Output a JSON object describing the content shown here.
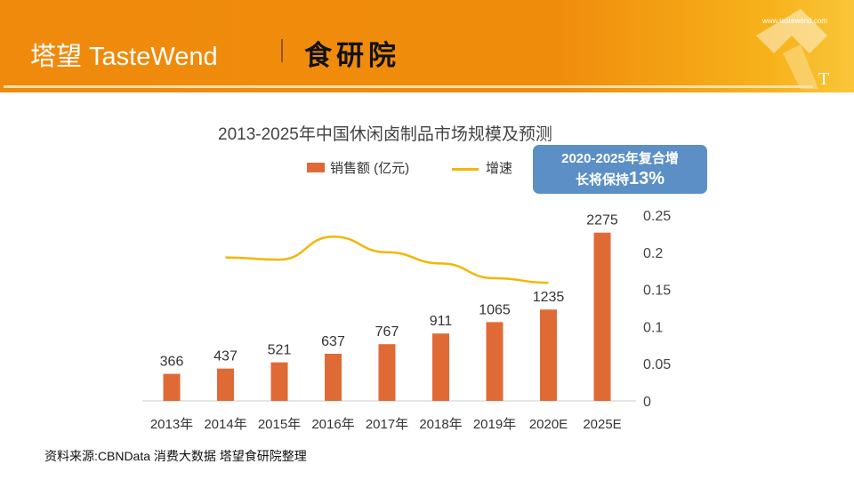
{
  "header": {
    "logo_text": "塔望 TasteWend",
    "institute": "食研院",
    "url": "www.tastewend.com",
    "mark": "T"
  },
  "chart_data": {
    "type": "bar+line",
    "title": "2013-2025年中国休闲卤制品市场规模及预测",
    "categories": [
      "2013年",
      "2014年",
      "2015年",
      "2016年",
      "2017年",
      "2018年",
      "2019年",
      "2020E",
      "2025E"
    ],
    "series": [
      {
        "name": "销售额 (亿元)",
        "type": "bar",
        "axis": "left",
        "color": "#e06a35",
        "values": [
          366,
          437,
          521,
          637,
          767,
          911,
          1065,
          1235,
          2275
        ]
      },
      {
        "name": "增速",
        "type": "line",
        "axis": "right",
        "color": "#f2b705",
        "values": [
          null,
          0.193,
          0.19,
          0.221,
          0.2,
          0.185,
          0.165,
          0.159,
          null
        ]
      }
    ],
    "y2_ticks": [
      "0",
      "0.05",
      "0.1",
      "0.15",
      "0.2",
      "0.25"
    ],
    "y2lim": [
      0,
      0.25
    ],
    "ylim": [
      0,
      2500
    ],
    "legend_placement": "top",
    "annotation": {
      "line1": "2020-2025年复合增",
      "line2": "长将保持",
      "highlight": "13%"
    }
  },
  "source": "资料来源:CBNData 消费大数据 塔望食研院整理"
}
